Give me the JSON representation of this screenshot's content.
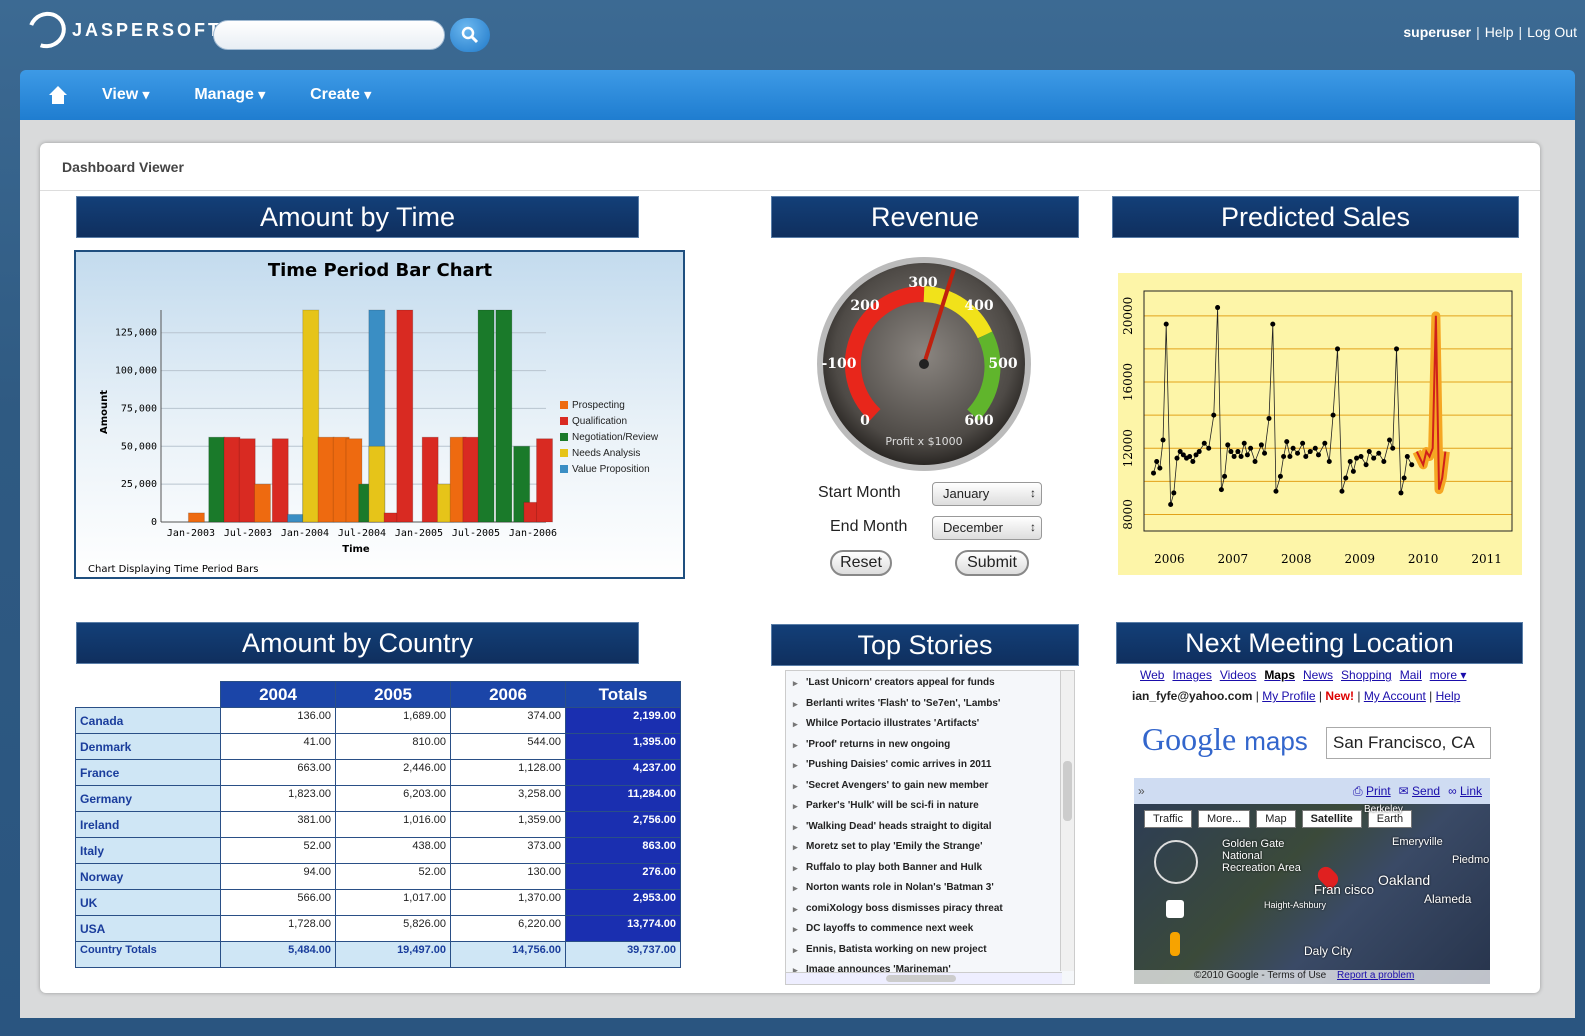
{
  "app": {
    "logo": "JASPERSOFT",
    "user": "superuser",
    "help": "Help",
    "logout": "Log Out"
  },
  "search": {
    "placeholder": ""
  },
  "nav": {
    "view": "View",
    "manage": "Manage",
    "create": "Create"
  },
  "page_title": "Dashboard Viewer",
  "panels": {
    "time": "Amount by Time",
    "revenue": "Revenue",
    "predicted": "Predicted Sales",
    "country": "Amount by Country",
    "stories": "Top Stories",
    "meeting": "Next Meeting Location"
  },
  "chart_data": [
    {
      "type": "bar",
      "title": "Time Period Bar Chart",
      "xlabel": "Time",
      "ylabel": "Amount",
      "footer": "Chart Displaying Time Period Bars",
      "ylim": [
        0,
        140000
      ],
      "yticks": [
        "0",
        "25,000",
        "50,000",
        "75,000",
        "100,000",
        "125,000"
      ],
      "xticks": [
        "Jan-2003",
        "Jul-2003",
        "Jan-2004",
        "Jul-2004",
        "Jan-2005",
        "Jul-2005",
        "Jan-2006"
      ],
      "legend": [
        "Prospecting",
        "Qualification",
        "Negotiation/Review",
        "Needs Analysis",
        "Value Proposition"
      ],
      "colors": [
        "#ee6a10",
        "#d92a22",
        "#1a7a2a",
        "#e6c419",
        "#3a8ec4"
      ],
      "bars": [
        {
          "t": 0.05,
          "v": 6000,
          "s": 0
        },
        {
          "t": 0.09,
          "v": 56000,
          "s": 2
        },
        {
          "t": 0.12,
          "v": 56000,
          "s": 1
        },
        {
          "t": 0.15,
          "v": 55000,
          "s": 1
        },
        {
          "t": 0.18,
          "v": 25000,
          "s": 0
        },
        {
          "t": 0.215,
          "v": 55000,
          "s": 1
        },
        {
          "t": 0.245,
          "v": 5000,
          "s": 4
        },
        {
          "t": 0.275,
          "v": 56000,
          "s": 2
        },
        {
          "t": 0.275,
          "v": 140000,
          "s": 3
        },
        {
          "t": 0.305,
          "v": 56000,
          "s": 0
        },
        {
          "t": 0.335,
          "v": 56000,
          "s": 0
        },
        {
          "t": 0.36,
          "v": 55000,
          "s": 0
        },
        {
          "t": 0.385,
          "v": 25000,
          "s": 2
        },
        {
          "t": 0.405,
          "v": 140000,
          "s": 4
        },
        {
          "t": 0.405,
          "v": 50000,
          "s": 3
        },
        {
          "t": 0.435,
          "v": 6000,
          "s": 1
        },
        {
          "t": 0.46,
          "v": 140000,
          "s": 1
        },
        {
          "t": 0.51,
          "v": 56000,
          "s": 1
        },
        {
          "t": 0.54,
          "v": 25000,
          "s": 3
        },
        {
          "t": 0.565,
          "v": 56000,
          "s": 0
        },
        {
          "t": 0.59,
          "v": 56000,
          "s": 1
        },
        {
          "t": 0.62,
          "v": 140000,
          "s": 2
        },
        {
          "t": 0.655,
          "v": 140000,
          "s": 2
        },
        {
          "t": 0.69,
          "v": 50000,
          "s": 2
        },
        {
          "t": 0.71,
          "v": 13000,
          "s": 1
        },
        {
          "t": 0.735,
          "v": 55000,
          "s": 1
        }
      ]
    },
    {
      "type": "line",
      "title": "",
      "xticks": [
        "2006",
        "2007",
        "2008",
        "2009",
        "2010",
        "2011"
      ],
      "yticks": [
        "8000",
        "12000",
        "16000",
        "20000"
      ],
      "ylim": [
        7000,
        21500
      ],
      "xlim": [
        2005.6,
        2011.4
      ],
      "series": [
        {
          "values": [
            [
              2005.75,
              10500
            ],
            [
              2005.8,
              11200
            ],
            [
              2005.85,
              10800
            ],
            [
              2005.9,
              12500
            ],
            [
              2005.95,
              19500
            ],
            [
              2006.02,
              8600
            ],
            [
              2006.07,
              9300
            ],
            [
              2006.12,
              11400
            ],
            [
              2006.17,
              11800
            ],
            [
              2006.22,
              11600
            ],
            [
              2006.27,
              11400
            ],
            [
              2006.32,
              11500
            ],
            [
              2006.37,
              11200
            ],
            [
              2006.42,
              11600
            ],
            [
              2006.47,
              11800
            ],
            [
              2006.55,
              12300
            ],
            [
              2006.62,
              12000
            ],
            [
              2006.7,
              14000
            ],
            [
              2006.76,
              20500
            ],
            [
              2006.82,
              9500
            ],
            [
              2006.87,
              10300
            ],
            [
              2006.92,
              12200
            ],
            [
              2006.97,
              11800
            ],
            [
              2007.02,
              11500
            ],
            [
              2007.08,
              11800
            ],
            [
              2007.13,
              11500
            ],
            [
              2007.18,
              12300
            ],
            [
              2007.23,
              11600
            ],
            [
              2007.28,
              12000
            ],
            [
              2007.35,
              11200
            ],
            [
              2007.45,
              12200
            ],
            [
              2007.5,
              11700
            ],
            [
              2007.57,
              13800
            ],
            [
              2007.63,
              19500
            ],
            [
              2007.68,
              9400
            ],
            [
              2007.75,
              10300
            ],
            [
              2007.8,
              11500
            ],
            [
              2007.85,
              12400
            ],
            [
              2007.9,
              11500
            ],
            [
              2007.95,
              12000
            ],
            [
              2008.02,
              11700
            ],
            [
              2008.1,
              12300
            ],
            [
              2008.15,
              11500
            ],
            [
              2008.22,
              11800
            ],
            [
              2008.3,
              12000
            ],
            [
              2008.35,
              11600
            ],
            [
              2008.45,
              12300
            ],
            [
              2008.52,
              11200
            ],
            [
              2008.58,
              14000
            ],
            [
              2008.65,
              18000
            ],
            [
              2008.72,
              9400
            ],
            [
              2008.78,
              10200
            ],
            [
              2008.85,
              11200
            ],
            [
              2008.9,
              10600
            ],
            [
              2008.95,
              11400
            ],
            [
              2009.02,
              11500
            ],
            [
              2009.1,
              11000
            ],
            [
              2009.15,
              11800
            ],
            [
              2009.22,
              11400
            ],
            [
              2009.3,
              11700
            ],
            [
              2009.38,
              11200
            ],
            [
              2009.47,
              12500
            ],
            [
              2009.52,
              12000
            ],
            [
              2009.58,
              18000
            ],
            [
              2009.65,
              9300
            ],
            [
              2009.7,
              10200
            ],
            [
              2009.75,
              11500
            ],
            [
              2009.82,
              11000
            ]
          ]
        },
        {
          "name": "forecast",
          "values": [
            [
              2009.9,
              11800
            ],
            [
              2009.95,
              11400
            ],
            [
              2010.0,
              11000
            ],
            [
              2010.05,
              11800
            ],
            [
              2010.1,
              11500
            ],
            [
              2010.15,
              12000
            ],
            [
              2010.2,
              20000
            ],
            [
              2010.25,
              9500
            ],
            [
              2010.3,
              10200
            ],
            [
              2010.35,
              11800
            ]
          ]
        }
      ]
    }
  ],
  "gauge": {
    "ticks": [
      "0",
      "-100",
      "200",
      "300",
      "400",
      "500",
      "600"
    ],
    "caption": "Profit x $1000",
    "value": 350
  },
  "controls": {
    "start_label": "Start Month",
    "start_value": "January",
    "end_label": "End Month",
    "end_value": "December",
    "reset": "Reset",
    "submit": "Submit"
  },
  "country_table": {
    "headers": [
      "2004",
      "2005",
      "2006",
      "Totals"
    ],
    "rows": [
      {
        "country": "Canada",
        "v": [
          "136.00",
          "1,689.00",
          "374.00",
          "2,199.00"
        ]
      },
      {
        "country": "Denmark",
        "v": [
          "41.00",
          "810.00",
          "544.00",
          "1,395.00"
        ]
      },
      {
        "country": "France",
        "v": [
          "663.00",
          "2,446.00",
          "1,128.00",
          "4,237.00"
        ]
      },
      {
        "country": "Germany",
        "v": [
          "1,823.00",
          "6,203.00",
          "3,258.00",
          "11,284.00"
        ]
      },
      {
        "country": "Ireland",
        "v": [
          "381.00",
          "1,016.00",
          "1,359.00",
          "2,756.00"
        ]
      },
      {
        "country": "Italy",
        "v": [
          "52.00",
          "438.00",
          "373.00",
          "863.00"
        ]
      },
      {
        "country": "Norway",
        "v": [
          "94.00",
          "52.00",
          "130.00",
          "276.00"
        ]
      },
      {
        "country": "UK",
        "v": [
          "566.00",
          "1,017.00",
          "1,370.00",
          "2,953.00"
        ]
      },
      {
        "country": "USA",
        "v": [
          "1,728.00",
          "5,826.00",
          "6,220.00",
          "13,774.00"
        ]
      }
    ],
    "totals_label": "Country Totals",
    "totals": [
      "5,484.00",
      "19,497.00",
      "14,756.00",
      "39,737.00"
    ]
  },
  "stories": [
    "'Last Unicorn' creators appeal for funds",
    "Berlanti writes 'Flash' to 'Se7en', 'Lambs'",
    "Whilce Portacio illustrates 'Artifacts'",
    "'Proof' returns in new ongoing",
    "'Pushing Daisies' comic arrives in 2011",
    "'Secret Avengers' to gain new member",
    "Parker's 'Hulk' will be sci-fi in nature",
    "'Walking Dead' heads straight to digital",
    "Moretz set to play 'Emily the Strange'",
    "Ruffalo to play both Banner and Hulk",
    "Norton wants role in Nolan's 'Batman 3'",
    "comiXology boss dismisses piracy threat",
    "DC layoffs to commence next week",
    "Ennis, Batista working on new project",
    "Image announces 'Marineman'"
  ],
  "gmaps": {
    "links": [
      "Web",
      "Images",
      "Videos",
      "Maps",
      "News",
      "Shopping",
      "Mail",
      "more ▾"
    ],
    "email": "ian_fyfe@yahoo.com",
    "profile": "My Profile",
    "new": "New!",
    "account": "My Account",
    "help": "Help",
    "logo_google": "Google",
    "logo_maps": "maps",
    "query": "San Francisco, CA",
    "print": "Print",
    "send": "Send",
    "link": "Link",
    "map_buttons": [
      "Traffic",
      "More...",
      "Map",
      "Satellite",
      "Earth"
    ],
    "places": [
      "Golden Gate National Recreation Area",
      "Emeryville",
      "Piedmo",
      "Oakland",
      "Alameda",
      "Fran cisco",
      "Daly City",
      "Haight-Ashbury",
      "Berkeley"
    ],
    "footer": "©2010 Google - Terms of Use",
    "report": "Report a problem"
  }
}
